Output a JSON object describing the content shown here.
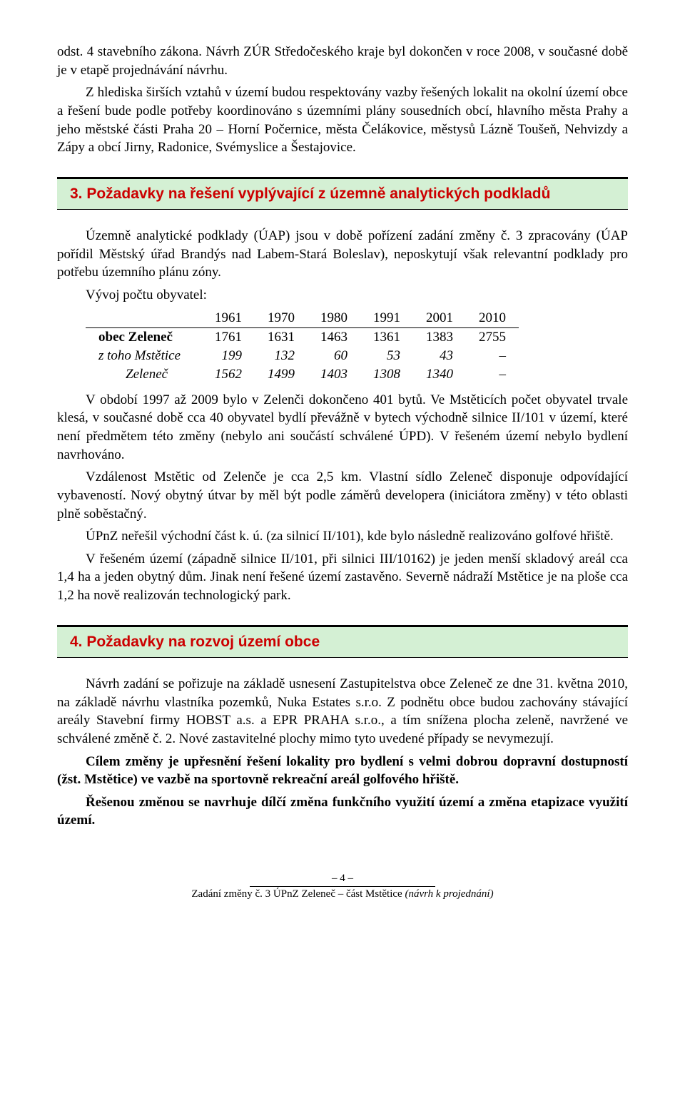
{
  "intro": {
    "p1": "odst. 4 stavebního zákona. Návrh ZÚR Středočeského kraje byl dokončen v roce 2008, v současné době je v etapě projednávání návrhu.",
    "p2": "Z hlediska širších vztahů v území budou respektovány vazby řešených lokalit na okolní území obce a řešení bude podle potřeby koordinováno s územními plány sousedních obcí, hlavního města Prahy a jeho městské části Praha 20 – Horní Počernice, města Čelákovice, městysů Lázně Toušeň, Nehvizdy a Zápy a obcí Jirny, Radonice, Svémyslice a Šestajovice."
  },
  "section3": {
    "rule_color": "#000000",
    "heading_bg": "#d4f0d4",
    "heading_color": "#cc0000",
    "title": "3. Požadavky na řešení vyplývající z územně analytických podkladů",
    "p1": "Územně analytické podklady (ÚAP) jsou v době pořízení zadání změny č. 3 zpracovány (ÚAP pořídil Městský úřad Brandýs nad Labem-Stará Boleslav), neposkytují však relevantní podklady pro potřebu územního plánu zóny.",
    "p2": "Vývoj počtu obyvatel:",
    "table": {
      "columns": [
        "",
        "1961",
        "1970",
        "1980",
        "1991",
        "2001",
        "2010"
      ],
      "rows": [
        {
          "label": "obec Zeleneč",
          "bold": true,
          "italic": false,
          "vals": [
            "1761",
            "1631",
            "1463",
            "1361",
            "1383",
            "2755"
          ]
        },
        {
          "label": "z toho Mstětice",
          "bold": false,
          "italic": true,
          "vals": [
            "199",
            "132",
            "60",
            "53",
            "43",
            "–"
          ]
        },
        {
          "label": "Zeleneč",
          "bold": false,
          "italic": true,
          "vals": [
            "1562",
            "1499",
            "1403",
            "1308",
            "1340",
            "–"
          ],
          "pad": true
        }
      ]
    },
    "p3": "V období 1997 až 2009 bylo v Zelenči dokončeno 401 bytů. Ve Mstěticích počet obyvatel trvale klesá, v současné době cca 40 obyvatel bydlí převážně v bytech východně silnice II/101 v území, které není předmětem této změny (nebylo ani součástí schválené ÚPD). V řešeném území nebylo bydlení navrhováno.",
    "p4": "Vzdálenost Mstětic od Zelenče je cca 2,5 km. Vlastní sídlo Zeleneč disponuje odpovídající vybaveností. Nový obytný útvar by měl být podle záměrů developera (iniciátora změny) v této oblasti plně soběstačný.",
    "p5": "ÚPnZ neřešil východní část k. ú. (za silnicí II/101), kde bylo následně realizováno golfové hřiště.",
    "p6": "V řešeném území (západně silnice II/101, při silnici III/10162) je jeden menší skladový areál cca 1,4 ha a jeden obytný dům. Jinak není řešené území zastavěno. Severně nádraží Mstětice je na ploše cca 1,2 ha nově realizován technologický park."
  },
  "section4": {
    "title": "4. Požadavky na rozvoj území obce",
    "p1": "Návrh zadání se pořizuje na základě usnesení Zastupitelstva obce Zeleneč ze dne 31. května 2010, na základě návrhu vlastníka pozemků, Nuka Estates s.r.o. Z podnětu obce budou zachovány stávající areály Stavební firmy HOBST a.s. a EPR PRAHA s.r.o., a tím snížena plocha zeleně, navržené ve schválené změně č. 2. Nové zastavitelné plochy mimo tyto uvedené případy se nevymezují.",
    "p2": "Cílem změny je upřesnění řešení lokality pro bydlení s velmi dobrou dopravní dostupností (žst. Mstětice) ve vazbě na sportovně rekreační areál golfového hřiště.",
    "p3": "Řešenou změnou se navrhuje dílčí změna funkčního využití území a změna etapizace využití území."
  },
  "footer": {
    "page": "– 4 –",
    "doc_prefix": "Zadání změny č. 3 ÚPnZ Zeleneč – část Mstětice ",
    "doc_suffix": "(návrh k projednání)"
  }
}
